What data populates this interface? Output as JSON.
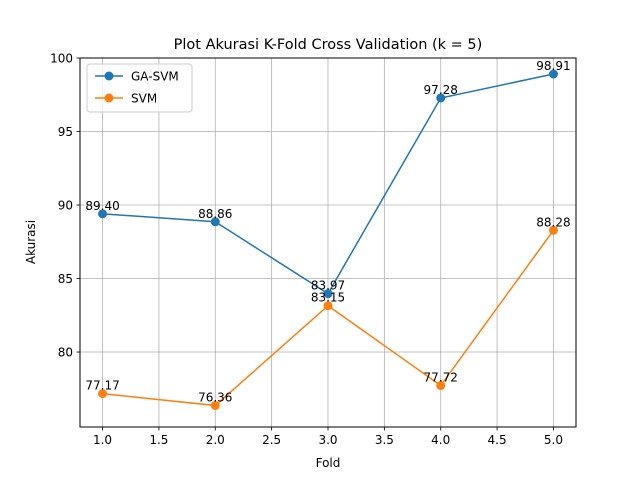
{
  "chart_data": {
    "type": "line",
    "title": "Plot Akurasi K-Fold Cross Validation (k = 5)",
    "xlabel": "Fold",
    "ylabel": "Akurasi",
    "x": [
      1,
      2,
      3,
      4,
      5
    ],
    "xlim": [
      0.8,
      5.2
    ],
    "ylim": [
      74.9,
      100
    ],
    "xticks": [
      "1.0",
      "1.5",
      "2.0",
      "2.5",
      "3.0",
      "3.5",
      "4.0",
      "4.5",
      "5.0"
    ],
    "yticks": [
      "80",
      "85",
      "90",
      "95",
      "100"
    ],
    "grid": true,
    "legend_position": "top-left",
    "series": [
      {
        "name": "GA-SVM",
        "color": "#1f77b4",
        "values": [
          89.4,
          88.86,
          83.97,
          97.28,
          98.91
        ],
        "labels": [
          "89.40",
          "88.86",
          "83.97",
          "97.28",
          "98.91"
        ]
      },
      {
        "name": "SVM",
        "color": "#ff7f0e",
        "values": [
          77.17,
          76.36,
          83.15,
          77.72,
          88.28
        ],
        "labels": [
          "77.17",
          "76.36",
          "83.15",
          "77.72",
          "88.28"
        ]
      }
    ]
  }
}
